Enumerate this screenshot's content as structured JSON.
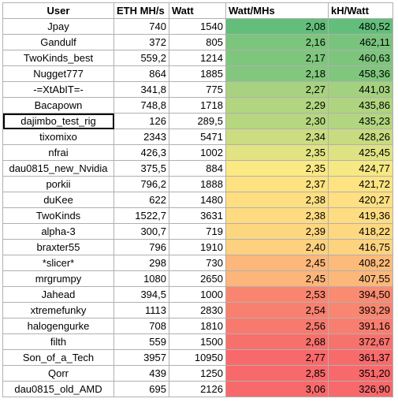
{
  "headers": [
    "User",
    "ETH MH/s",
    "Watt",
    "Watt/MHs",
    "kH/Watt"
  ],
  "rows": [
    {
      "user": "Jpay",
      "eth": "740",
      "watt": "1540",
      "wpm": "2,08",
      "khw": "480,52",
      "c1": "#63be7b",
      "c2": "#63be7b"
    },
    {
      "user": "Gandulf",
      "eth": "372",
      "watt": "805",
      "wpm": "2,16",
      "khw": "462,11",
      "c1": "#7cc57d",
      "c2": "#79c47d"
    },
    {
      "user": "TwoKinds_best",
      "eth": "559,2",
      "watt": "1214",
      "wpm": "2,17",
      "khw": "460,63",
      "c1": "#7fc67d",
      "c2": "#7dc57d"
    },
    {
      "user": "Nugget777",
      "eth": "864",
      "watt": "1885",
      "wpm": "2,18",
      "khw": "458,36",
      "c1": "#82c77d",
      "c2": "#80c67d"
    },
    {
      "user": "-=XtAbIT=-",
      "eth": "341,8",
      "watt": "775",
      "wpm": "2,27",
      "khw": "441,03",
      "c1": "#a8d27f",
      "c2": "#a4d17f"
    },
    {
      "user": "Bacapown",
      "eth": "748,8",
      "watt": "1718",
      "wpm": "2,29",
      "khw": "435,86",
      "c1": "#b2d580",
      "c2": "#afd47f"
    },
    {
      "user": "dajimbo_test_rig",
      "eth": "126",
      "watt": "289,5",
      "wpm": "2,30",
      "khw": "435,23",
      "c1": "#b6d680",
      "c2": "#b2d580"
    },
    {
      "user": "tixomixo",
      "eth": "2343",
      "watt": "5471",
      "wpm": "2,34",
      "khw": "428,26",
      "c1": "#cbdc81",
      "c2": "#c8db81"
    },
    {
      "user": "nfrai",
      "eth": "426,3",
      "watt": "1002",
      "wpm": "2,35",
      "khw": "425,45",
      "c1": "#e2e383",
      "c2": "#dfe283"
    },
    {
      "user": "dau0815_new_Nvidia",
      "eth": "375,5",
      "watt": "884",
      "wpm": "2,35",
      "khw": "424,77",
      "c1": "#fbe983",
      "c2": "#f6e883"
    },
    {
      "user": "porkii",
      "eth": "796,2",
      "watt": "1888",
      "wpm": "2,37",
      "khw": "421,72",
      "c1": "#fee282",
      "c2": "#fee382"
    },
    {
      "user": "duKee",
      "eth": "622",
      "watt": "1480",
      "wpm": "2,38",
      "khw": "420,27",
      "c1": "#fede81",
      "c2": "#fedf81"
    },
    {
      "user": "TwoKinds",
      "eth": "1522,7",
      "watt": "3631",
      "wpm": "2,38",
      "khw": "419,36",
      "c1": "#fedb81",
      "c2": "#fedc81"
    },
    {
      "user": "alpha-3",
      "eth": "300,7",
      "watt": "719",
      "wpm": "2,39",
      "khw": "418,22",
      "c1": "#fdd780",
      "c2": "#fdd880"
    },
    {
      "user": "braxter55",
      "eth": "796",
      "watt": "1910",
      "wpm": "2,40",
      "khw": "416,75",
      "c1": "#fdd17f",
      "c2": "#fdd37f"
    },
    {
      "user": "*slicer*",
      "eth": "298",
      "watt": "730",
      "wpm": "2,45",
      "khw": "408,22",
      "c1": "#fcb77a",
      "c2": "#fcbb7b"
    },
    {
      "user": "mrgrumpy",
      "eth": "1080",
      "watt": "2650",
      "wpm": "2,45",
      "khw": "407,55",
      "c1": "#fcb57a",
      "c2": "#fcb87a"
    },
    {
      "user": "Jahead",
      "eth": "394,5",
      "watt": "1000",
      "wpm": "2,53",
      "khw": "394,50",
      "c1": "#f98570",
      "c2": "#f98b71"
    },
    {
      "user": "xtremefunky",
      "eth": "1113",
      "watt": "2830",
      "wpm": "2,54",
      "khw": "393,29",
      "c1": "#f8806f",
      "c2": "#f98670"
    },
    {
      "user": "halogengurke",
      "eth": "708",
      "watt": "1810",
      "wpm": "2,56",
      "khw": "391,16",
      "c1": "#f8796e",
      "c2": "#f87f6f"
    },
    {
      "user": "filth",
      "eth": "559",
      "watt": "1500",
      "wpm": "2,68",
      "khw": "372,67",
      "c1": "#f8706c",
      "c2": "#f8726d"
    },
    {
      "user": "Son_of_a_Tech",
      "eth": "3957",
      "watt": "10950",
      "wpm": "2,77",
      "khw": "361,37",
      "c1": "#f8696b",
      "c2": "#f86b6b"
    },
    {
      "user": "Qorr",
      "eth": "439",
      "watt": "1250",
      "wpm": "2,85",
      "khw": "351,20",
      "c1": "#f8696b",
      "c2": "#f8696b"
    },
    {
      "user": "dau0815_old_AMD",
      "eth": "695",
      "watt": "2126",
      "wpm": "3,06",
      "khw": "326,90",
      "c1": "#f8696b",
      "c2": "#f8696b"
    }
  ]
}
